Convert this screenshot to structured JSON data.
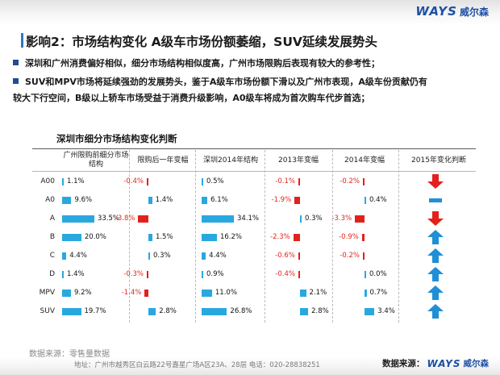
{
  "header": {
    "logo_mark": "WAYS",
    "logo_cn": "威尔森"
  },
  "title": "影响2：市场结构变化   A级车市场份额萎缩，SUV延续发展势头",
  "bullets": [
    "深圳和广州消费偏好相似，细分市场结构相似度高，广州市场限购后表现有较大的参考性；",
    "SUV和MPV市场将延续强劲的发展势头，鉴于A级车市场份额下滑以及广州市表现，A级车份贡献仍有",
    "较大下行空间，B级以上轿车市场受益于消费升级影响，A0级车将成为首次购车代步首选；"
  ],
  "table": {
    "title": "深圳市细分市场结构变化判断",
    "columns": [
      "广州限购前细分市场结构",
      "限购后一年变幅",
      "深圳2014年结构",
      "2013年变幅",
      "2014年变幅",
      "2015年变化判断"
    ],
    "rows": [
      {
        "label": "A00",
        "gz_pre": 1.1,
        "gz_pre_text": "1.1%",
        "gz_chg": -0.4,
        "gz_chg_text": "-0.4%",
        "sz14": 0.5,
        "sz14_text": "0.5%",
        "chg13": -0.1,
        "chg13_text": "-0.1%",
        "chg14": -0.2,
        "chg14_text": "-0.2%",
        "judgement": "down"
      },
      {
        "label": "A0",
        "gz_pre": 9.6,
        "gz_pre_text": "9.6%",
        "gz_chg": 1.4,
        "gz_chg_text": "1.4%",
        "sz14": 6.1,
        "sz14_text": "6.1%",
        "chg13": -1.9,
        "chg13_text": "-1.9%",
        "chg14": 0.4,
        "chg14_text": "0.4%",
        "judgement": "flat"
      },
      {
        "label": "A",
        "gz_pre": 33.5,
        "gz_pre_text": "33.5%",
        "gz_chg": -3.8,
        "gz_chg_text": "-3.8%",
        "sz14": 34.1,
        "sz14_text": "34.1%",
        "chg13": 0.3,
        "chg13_text": "0.3%",
        "chg14": -3.3,
        "chg14_text": "-3.3%",
        "judgement": "down"
      },
      {
        "label": "B",
        "gz_pre": 20.0,
        "gz_pre_text": "20.0%",
        "gz_chg": 1.5,
        "gz_chg_text": "1.5%",
        "sz14": 16.2,
        "sz14_text": "16.2%",
        "chg13": -2.3,
        "chg13_text": "-2.3%",
        "chg14": -0.9,
        "chg14_text": "-0.9%",
        "judgement": "up"
      },
      {
        "label": "C",
        "gz_pre": 4.4,
        "gz_pre_text": "4.4%",
        "gz_chg": 0.3,
        "gz_chg_text": "0.3%",
        "sz14": 4.4,
        "sz14_text": "4.4%",
        "chg13": -0.6,
        "chg13_text": "-0.6%",
        "chg14": -0.2,
        "chg14_text": "-0.2%",
        "judgement": "up"
      },
      {
        "label": "D",
        "gz_pre": 1.4,
        "gz_pre_text": "1.4%",
        "gz_chg": -0.3,
        "gz_chg_text": "-0.3%",
        "sz14": 0.9,
        "sz14_text": "0.9%",
        "chg13": -0.4,
        "chg13_text": "-0.4%",
        "chg14": 0.0,
        "chg14_text": "0.0%",
        "judgement": "up"
      },
      {
        "label": "MPV",
        "gz_pre": 9.2,
        "gz_pre_text": "9.2%",
        "gz_chg": -1.4,
        "gz_chg_text": "-1.4%",
        "sz14": 11.0,
        "sz14_text": "11.0%",
        "chg13": 2.1,
        "chg13_text": "2.1%",
        "chg14": 0.7,
        "chg14_text": "0.7%",
        "judgement": "up"
      },
      {
        "label": "SUV",
        "gz_pre": 19.7,
        "gz_pre_text": "19.7%",
        "gz_chg": 2.8,
        "gz_chg_text": "2.8%",
        "sz14": 26.8,
        "sz14_text": "26.8%",
        "chg13": 2.8,
        "chg13_text": "2.8%",
        "chg14": 3.4,
        "chg14_text": "3.4%",
        "judgement": "up"
      }
    ]
  },
  "colors": {
    "positive_bar": "#29a8e0",
    "negative_bar": "#e3211c",
    "arrow_down": "#e3211c",
    "arrow_up": "#1f8fd6",
    "flat": "#1f8fd6"
  },
  "footer": {
    "source_left": "数据来源：零售量数据",
    "address": "地址：广州市越秀区白云路22号嘉星广场A区23A、28层    电话：020-28838251",
    "source_right_label": "数据来源：",
    "source_right_mark": "WAYS",
    "source_right_cn": "威尔森"
  }
}
